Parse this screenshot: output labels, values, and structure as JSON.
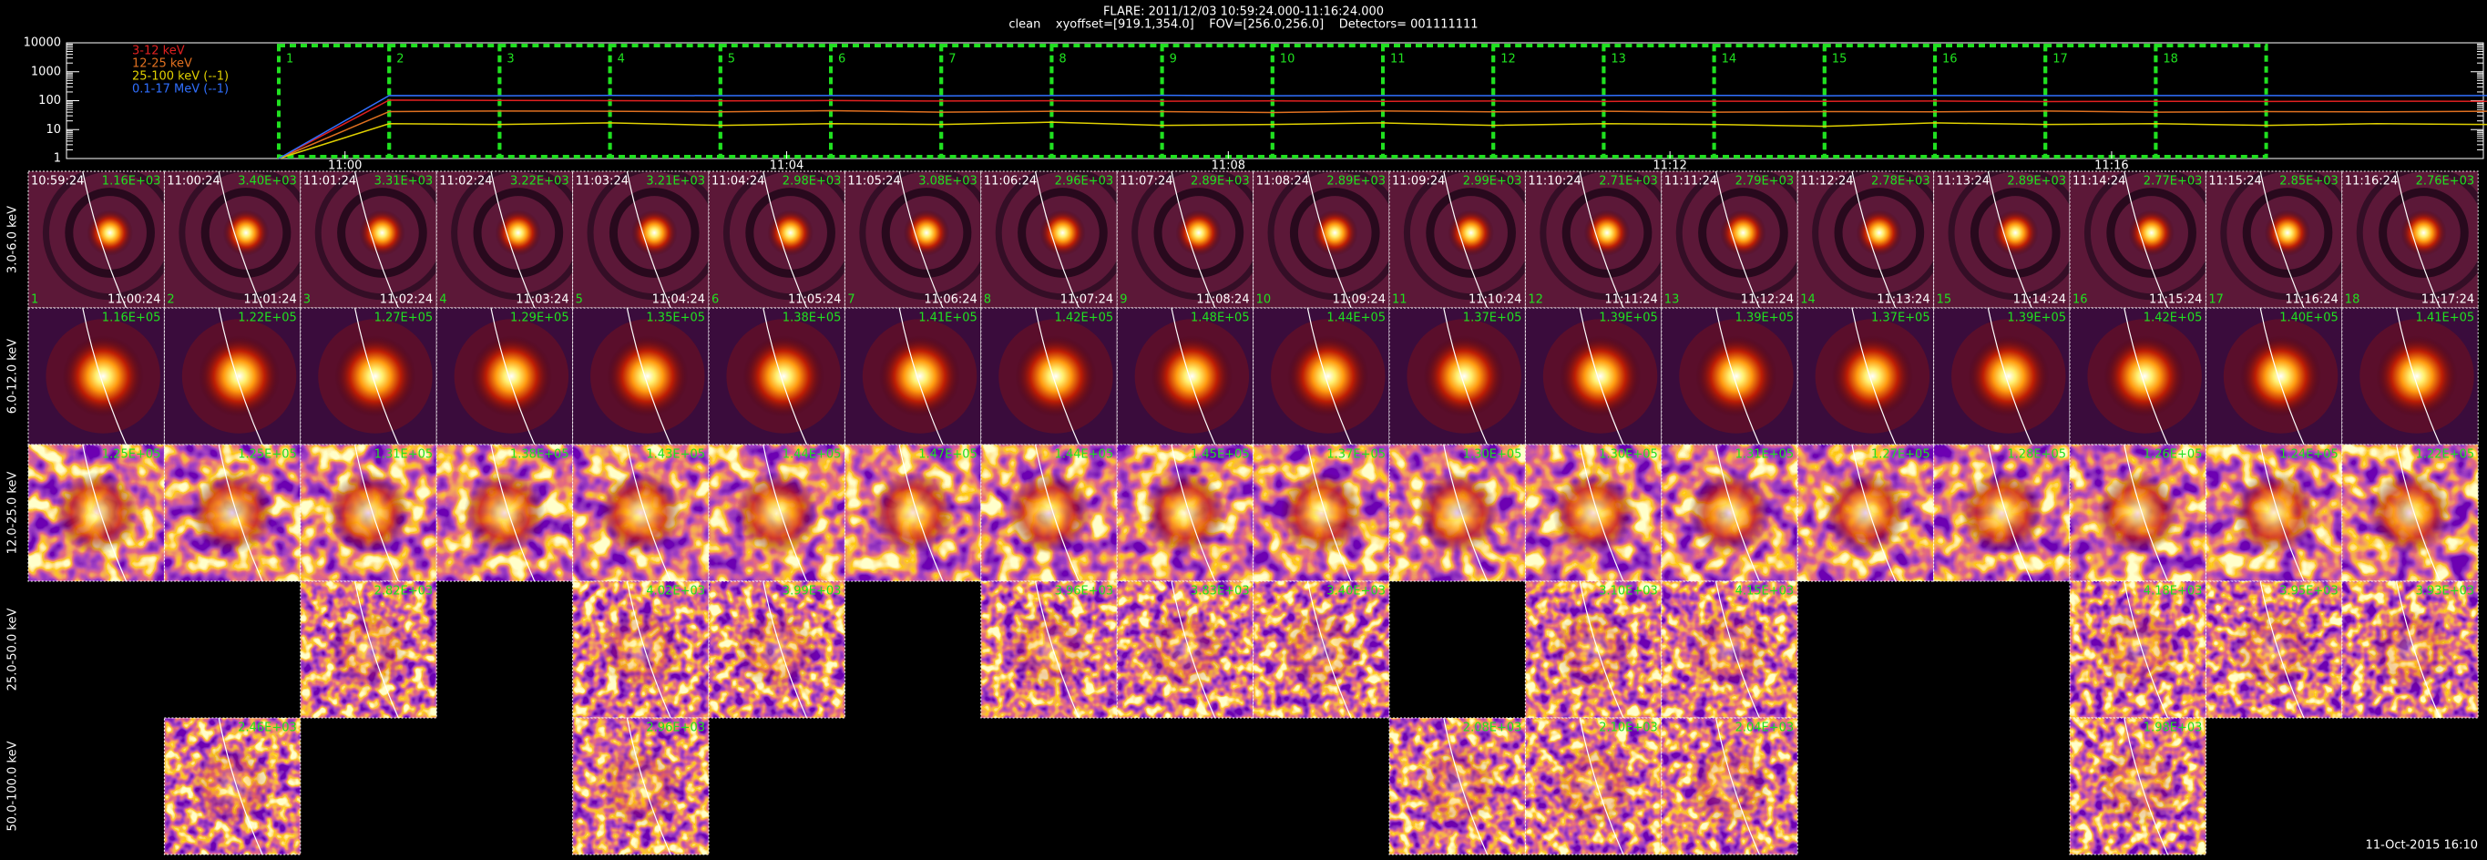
{
  "header": {
    "title": "FLARE: 2011/12/03 10:59:24.000-11:16:24.000",
    "subtitle": "clean    xyoffset=[919.1,354.0]    FOV=[256.0,256.0]    Detectors= 001111111"
  },
  "lightcurve": {
    "type": "line",
    "log_scale": true,
    "ylim": [
      1,
      10000
    ],
    "yticks": [
      1,
      10,
      100,
      1000,
      10000
    ],
    "series": [
      {
        "name": "3-12 keV",
        "color": "#e02020",
        "values": [
          1,
          105,
          102,
          100,
          98,
          101,
          97,
          99,
          96,
          98,
          95,
          97,
          94,
          96,
          95,
          97,
          93,
          95,
          94,
          96,
          95
        ]
      },
      {
        "name": "12-25 keV",
        "color": "#e07020",
        "values": [
          1,
          42,
          44,
          43,
          41,
          45,
          40,
          43,
          42,
          39,
          44,
          41,
          43,
          40,
          42,
          41,
          44,
          40,
          42,
          41,
          43
        ]
      },
      {
        "name": "25-100 keV (--1)",
        "color": "#e0d000",
        "values": [
          1,
          16,
          15,
          17,
          14,
          16,
          15,
          18,
          14,
          15,
          17,
          14,
          16,
          15,
          13,
          17,
          15,
          16,
          14,
          16,
          15
        ]
      },
      {
        "name": "0.1-17 MeV (--1)",
        "color": "#3070ff",
        "values": [
          1,
          150,
          148,
          152,
          149,
          151,
          147,
          150,
          153,
          148,
          150,
          149,
          151,
          152,
          148,
          150,
          149,
          151,
          150,
          148,
          150
        ]
      }
    ],
    "time_labels": [
      "11:00",
      "11:04",
      "11:08",
      "11:12",
      "11:16"
    ],
    "intervals": [
      "1",
      "2",
      "3",
      "4",
      "5",
      "6",
      "7",
      "8",
      "9",
      "10",
      "11",
      "12",
      "13",
      "14",
      "15",
      "16",
      "17",
      "18"
    ]
  },
  "images": {
    "rows": [
      {
        "label": "3.0-6.0 keV",
        "cells": [
          {
            "peak": "1.16E+03",
            "start": "10:59:24",
            "end": "11:00:24",
            "index": "1"
          },
          {
            "peak": "3.40E+03",
            "start": "11:00:24",
            "end": "11:01:24",
            "index": "2"
          },
          {
            "peak": "3.31E+03",
            "start": "11:01:24",
            "end": "11:02:24",
            "index": "3"
          },
          {
            "peak": "3.22E+03",
            "start": "11:02:24",
            "end": "11:03:24",
            "index": "4"
          },
          {
            "peak": "3.21E+03",
            "start": "11:03:24",
            "end": "11:04:24",
            "index": "5"
          },
          {
            "peak": "2.98E+03",
            "start": "11:04:24",
            "end": "11:05:24",
            "index": "6"
          },
          {
            "peak": "3.08E+03",
            "start": "11:05:24",
            "end": "11:06:24",
            "index": "7"
          },
          {
            "peak": "2.96E+03",
            "start": "11:06:24",
            "end": "11:07:24",
            "index": "8"
          },
          {
            "peak": "2.89E+03",
            "start": "11:07:24",
            "end": "11:08:24",
            "index": "9"
          },
          {
            "peak": "2.89E+03",
            "start": "11:08:24",
            "end": "11:09:24",
            "index": "10"
          },
          {
            "peak": "2.99E+03",
            "start": "11:09:24",
            "end": "11:10:24",
            "index": "11"
          },
          {
            "peak": "2.71E+03",
            "start": "11:10:24",
            "end": "11:11:24",
            "index": "12"
          },
          {
            "peak": "2.79E+03",
            "start": "11:11:24",
            "end": "11:12:24",
            "index": "13"
          },
          {
            "peak": "2.78E+03",
            "start": "11:12:24",
            "end": "11:13:24",
            "index": "14"
          },
          {
            "peak": "2.89E+03",
            "start": "11:13:24",
            "end": "11:14:24",
            "index": "15"
          },
          {
            "peak": "2.77E+03",
            "start": "11:14:24",
            "end": "11:15:24",
            "index": "16"
          },
          {
            "peak": "2.85E+03",
            "start": "11:15:24",
            "end": "11:16:24",
            "index": "17"
          },
          {
            "peak": "2.76E+03",
            "start": "11:16:24",
            "end": "11:17:24",
            "index": "18"
          }
        ]
      },
      {
        "label": "6.0-12.0 keV",
        "cells": [
          {
            "peak": "1.16E+05"
          },
          {
            "peak": "1.22E+05"
          },
          {
            "peak": "1.27E+05"
          },
          {
            "peak": "1.29E+05"
          },
          {
            "peak": "1.35E+05"
          },
          {
            "peak": "1.38E+05"
          },
          {
            "peak": "1.41E+05"
          },
          {
            "peak": "1.42E+05"
          },
          {
            "peak": "1.48E+05"
          },
          {
            "peak": "1.44E+05"
          },
          {
            "peak": "1.37E+05"
          },
          {
            "peak": "1.39E+05"
          },
          {
            "peak": "1.39E+05"
          },
          {
            "peak": "1.37E+05"
          },
          {
            "peak": "1.39E+05"
          },
          {
            "peak": "1.42E+05"
          },
          {
            "peak": "1.40E+05"
          },
          {
            "peak": "1.41E+05"
          }
        ]
      },
      {
        "label": "12.0-25.0 keV",
        "cells": [
          {
            "peak": "1.25E+05"
          },
          {
            "peak": "1.25E+05"
          },
          {
            "peak": "1.31E+05"
          },
          {
            "peak": "1.38E+05"
          },
          {
            "peak": "1.43E+05"
          },
          {
            "peak": "1.44E+05"
          },
          {
            "peak": "1.47E+05"
          },
          {
            "peak": "1.44E+05"
          },
          {
            "peak": "1.45E+05"
          },
          {
            "peak": "1.37E+05"
          },
          {
            "peak": "1.30E+05"
          },
          {
            "peak": "1.30E+05"
          },
          {
            "peak": "1.31E+05"
          },
          {
            "peak": "1.27E+05"
          },
          {
            "peak": "1.28E+05"
          },
          {
            "peak": "1.26E+05"
          },
          {
            "peak": "1.24E+05"
          },
          {
            "peak": "1.22E+05"
          }
        ]
      },
      {
        "label": "25.0-50.0 keV",
        "cells": [
          null,
          null,
          {
            "peak": "2.82E+03"
          },
          null,
          {
            "peak": "4.02E+03"
          },
          {
            "peak": "3.99E+03"
          },
          null,
          {
            "peak": "3.96E+03"
          },
          {
            "peak": "3.83E+03"
          },
          {
            "peak": "3.40E+03"
          },
          null,
          {
            "peak": "3.10E+03"
          },
          {
            "peak": "4.15E+03"
          },
          null,
          null,
          {
            "peak": "4.18E+03"
          },
          {
            "peak": "3.95E+03"
          },
          {
            "peak": "3.93E+03"
          }
        ]
      },
      {
        "label": "50.0-100.0 keV",
        "cells": [
          null,
          {
            "peak": "2.46E+03"
          },
          null,
          null,
          {
            "peak": "2.96E+03"
          },
          null,
          null,
          null,
          null,
          null,
          {
            "peak": "2.08E+03"
          },
          {
            "peak": "2.10E+03"
          },
          {
            "peak": "2.04E+03"
          },
          null,
          null,
          {
            "peak": "1.98E+03"
          },
          null,
          null
        ]
      }
    ]
  },
  "footer": "11-Oct-2015 16:10"
}
